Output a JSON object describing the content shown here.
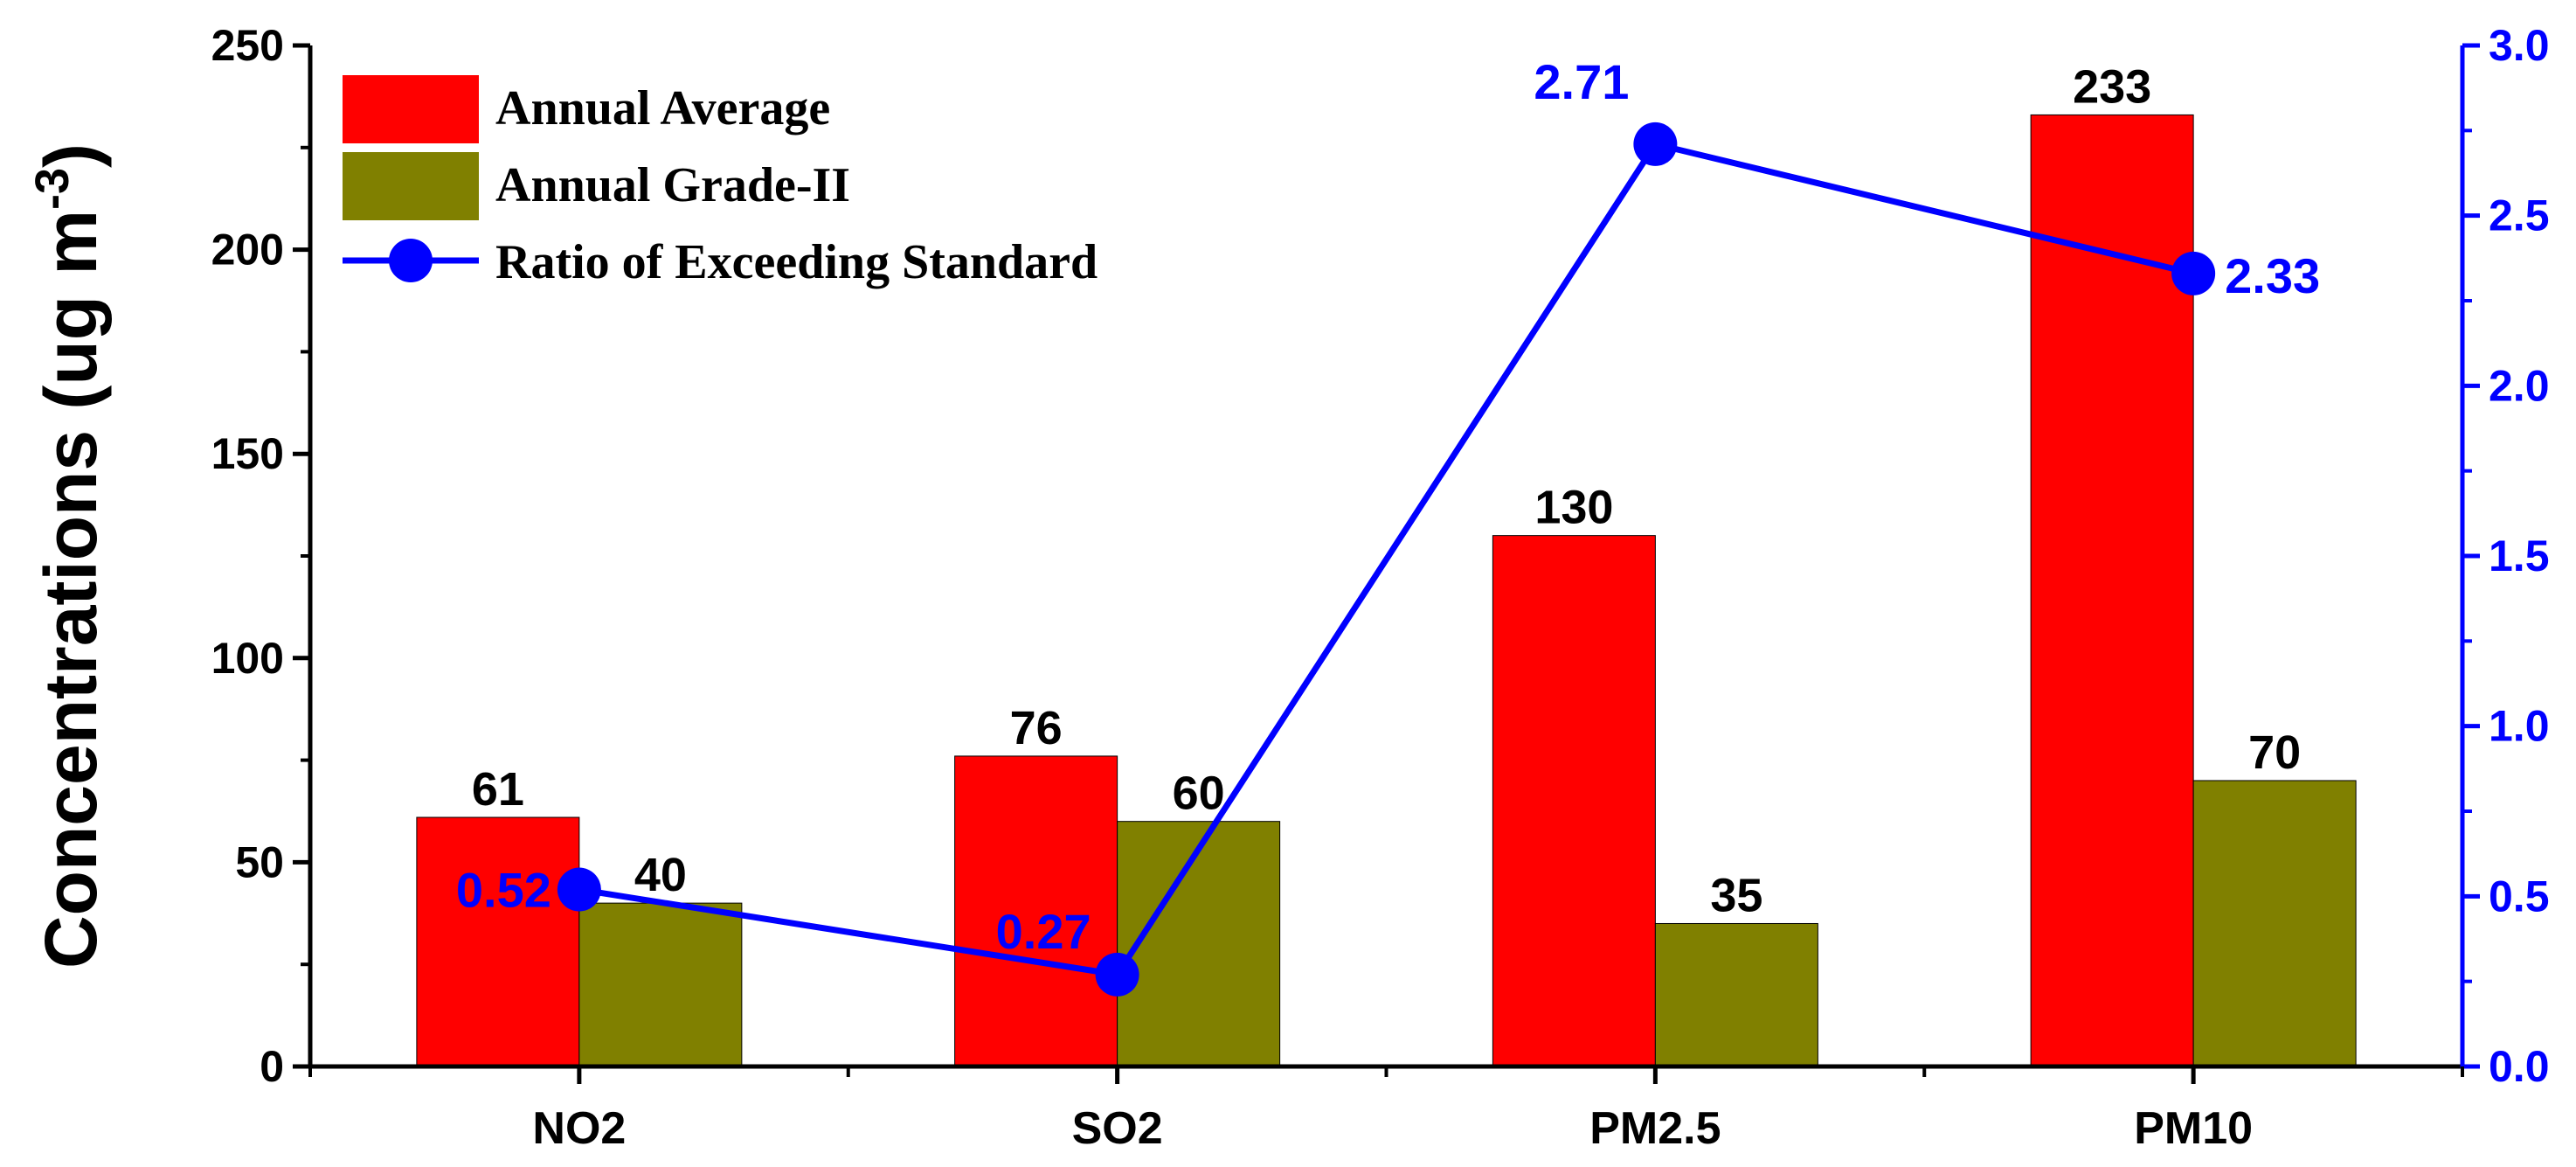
{
  "chart_data": {
    "type": "bar",
    "categories": [
      "NO2",
      "SO2",
      "PM2.5",
      "PM10"
    ],
    "series": [
      {
        "name": "Annual Average",
        "axis": "left",
        "kind": "bar",
        "color": "#ff0000",
        "values": [
          61,
          76,
          130,
          233
        ],
        "labels": [
          "61",
          "76",
          "130",
          "233"
        ]
      },
      {
        "name": "Annual Grade-II",
        "axis": "left",
        "kind": "bar",
        "color": "#808000",
        "values": [
          40,
          60,
          35,
          70
        ],
        "labels": [
          "40",
          "60",
          "35",
          "70"
        ]
      },
      {
        "name": "Ratio of Exceeding Standard",
        "axis": "right",
        "kind": "line",
        "color": "#0000ff",
        "values": [
          0.52,
          0.27,
          2.71,
          2.33
        ],
        "labels": [
          "0.52",
          "0.27",
          "2.71",
          "2.33"
        ]
      }
    ],
    "ylabel": "Concentrations (ug m",
    "ylabel_superscript": "-3",
    "ylabel_suffix": ")",
    "ylim": [
      0,
      250
    ],
    "yticks": [
      "0",
      "50",
      "100",
      "150",
      "200",
      "250"
    ],
    "y2lim": [
      0,
      3.0
    ],
    "y2ticks": [
      "0.0",
      "0.5",
      "1.0",
      "1.5",
      "2.0",
      "2.5",
      "3.0"
    ],
    "legend_position": "top-left"
  }
}
